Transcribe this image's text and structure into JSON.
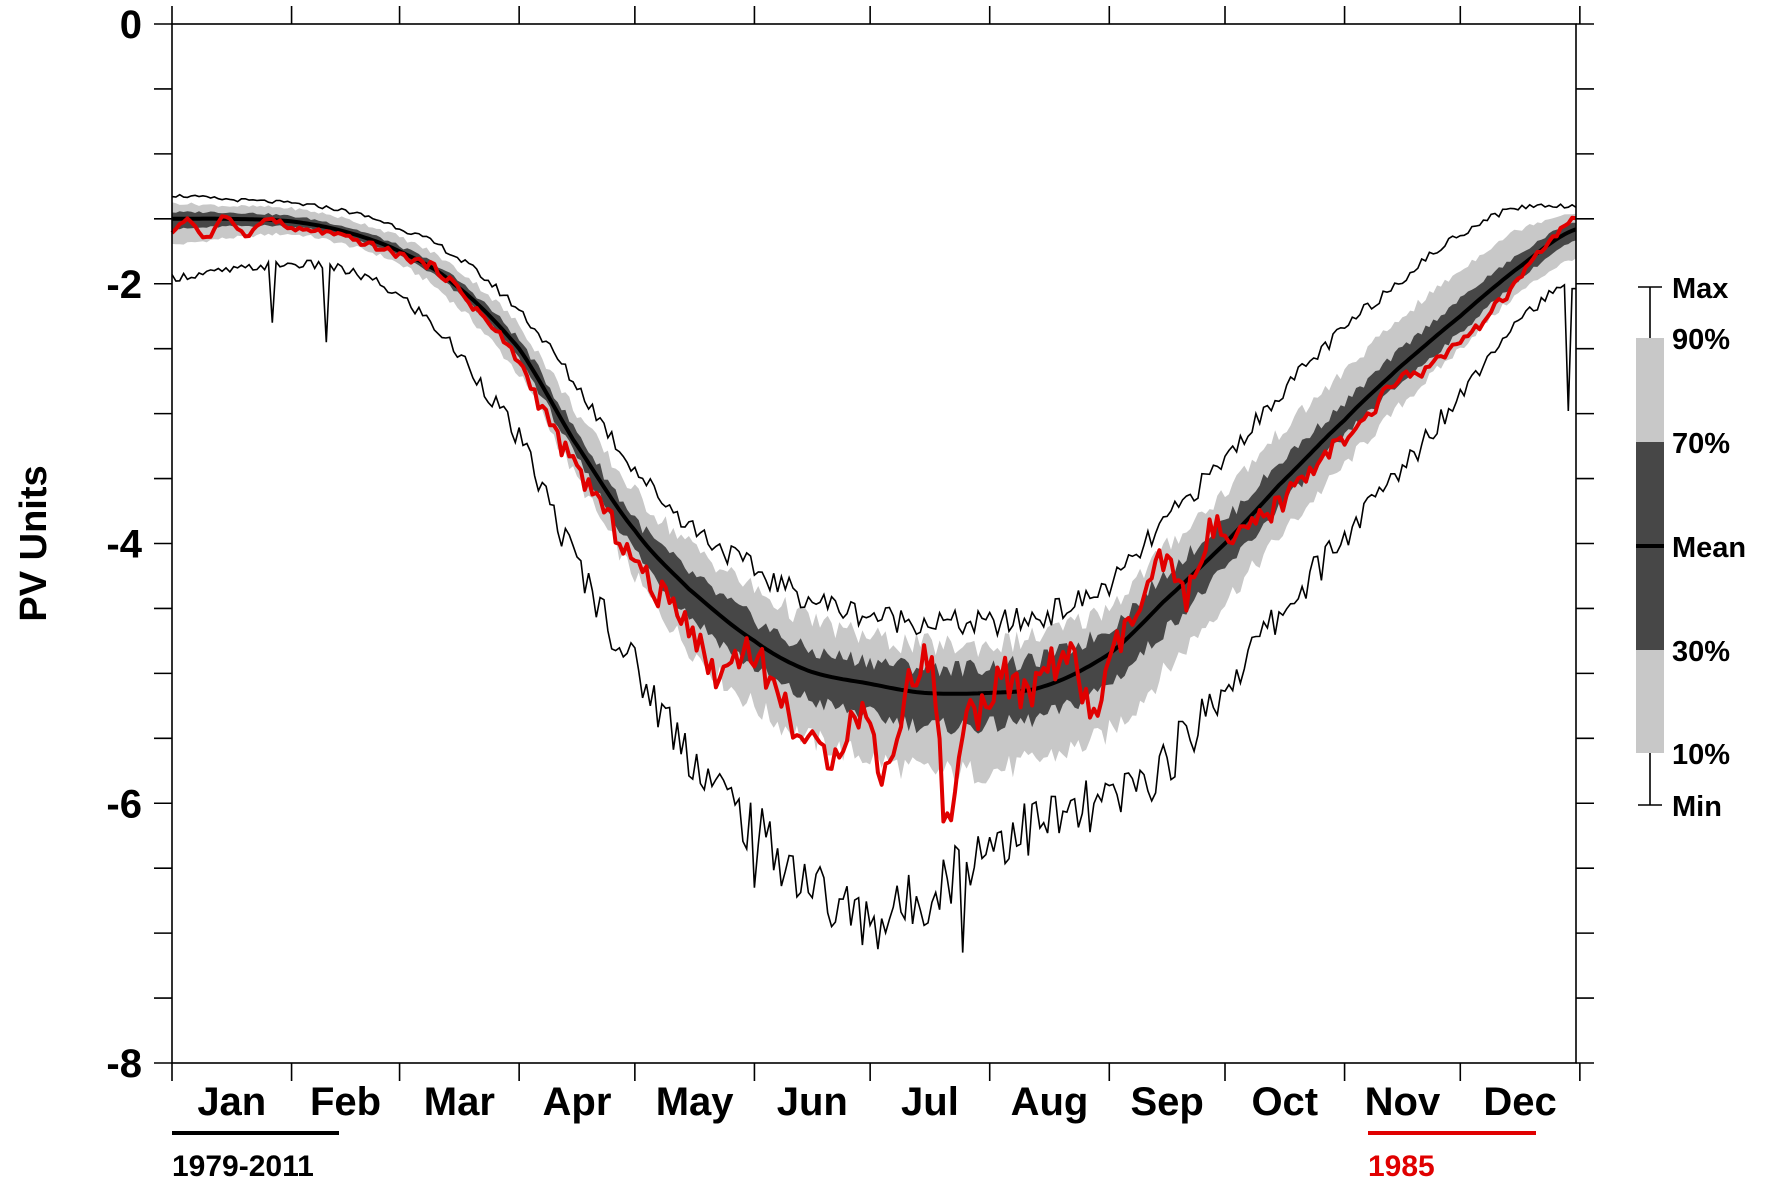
{
  "chart_data": {
    "type": "area",
    "ylabel": "PV Units",
    "ylim": [
      -8,
      0
    ],
    "yticks": [
      0,
      -2,
      -4,
      -6,
      -8
    ],
    "ytick_labels": [
      "0",
      "-2",
      "-4",
      "-6",
      "-8"
    ],
    "months": [
      "Jan",
      "Feb",
      "Mar",
      "Apr",
      "May",
      "Jun",
      "Jul",
      "Aug",
      "Sep",
      "Oct",
      "Nov",
      "Dec"
    ],
    "month_days": [
      31,
      28,
      31,
      30,
      31,
      30,
      31,
      31,
      30,
      31,
      30,
      31
    ],
    "x_unit": "day of year",
    "legend": {
      "labels": [
        "Max",
        "90%",
        "70%",
        "Mean",
        "30%",
        "10%",
        "Min"
      ],
      "period_label": "1979-2011",
      "year_label": "1985"
    },
    "colors": {
      "band_10_90": "#c8c8c8",
      "band_30_70": "#474747",
      "mean": "#000000",
      "extremes": "#000000",
      "year_1985": "#e00000"
    },
    "climatology": {
      "day": [
        1,
        15,
        32,
        46,
        60,
        74,
        91,
        105,
        121,
        135,
        152,
        166,
        182,
        196,
        213,
        227,
        244,
        258,
        274,
        288,
        305,
        319,
        335,
        349,
        365
      ],
      "mean": [
        -1.5,
        -1.5,
        -1.52,
        -1.6,
        -1.75,
        -2.0,
        -2.5,
        -3.2,
        -3.9,
        -4.35,
        -4.75,
        -4.98,
        -5.08,
        -5.15,
        -5.15,
        -5.1,
        -4.85,
        -4.45,
        -4.0,
        -3.55,
        -3.05,
        -2.65,
        -2.25,
        -1.9,
        -1.58
      ],
      "p10": [
        -1.7,
        -1.65,
        -1.62,
        -1.7,
        -1.85,
        -2.15,
        -2.7,
        -3.45,
        -4.25,
        -4.8,
        -5.25,
        -5.5,
        -5.65,
        -5.75,
        -5.75,
        -5.65,
        -5.45,
        -5.0,
        -4.45,
        -3.95,
        -3.4,
        -2.95,
        -2.5,
        -2.1,
        -1.8
      ],
      "p30": [
        -1.58,
        -1.56,
        -1.56,
        -1.64,
        -1.79,
        -2.05,
        -2.58,
        -3.3,
        -4.05,
        -4.55,
        -4.95,
        -5.2,
        -5.32,
        -5.4,
        -5.4,
        -5.33,
        -5.08,
        -4.68,
        -4.2,
        -3.72,
        -3.18,
        -2.78,
        -2.38,
        -2.0,
        -1.67
      ],
      "p70": [
        -1.45,
        -1.45,
        -1.48,
        -1.56,
        -1.71,
        -1.95,
        -2.43,
        -3.1,
        -3.8,
        -4.22,
        -4.58,
        -4.82,
        -4.9,
        -4.95,
        -4.95,
        -4.88,
        -4.65,
        -4.25,
        -3.82,
        -3.38,
        -2.92,
        -2.52,
        -2.12,
        -1.8,
        -1.52
      ],
      "p90": [
        -1.38,
        -1.4,
        -1.42,
        -1.5,
        -1.64,
        -1.87,
        -2.32,
        -2.95,
        -3.6,
        -4.0,
        -4.35,
        -4.58,
        -4.72,
        -4.78,
        -4.78,
        -4.7,
        -4.48,
        -4.05,
        -3.6,
        -3.15,
        -2.68,
        -2.28,
        -1.9,
        -1.6,
        -1.45
      ],
      "max": [
        -1.32,
        -1.35,
        -1.38,
        -1.44,
        -1.57,
        -1.78,
        -2.2,
        -2.75,
        -3.42,
        -3.85,
        -4.2,
        -4.42,
        -4.55,
        -4.6,
        -4.62,
        -4.55,
        -4.32,
        -3.85,
        -3.35,
        -2.85,
        -2.35,
        -1.98,
        -1.62,
        -1.42,
        -1.4
      ],
      "min": [
        -1.95,
        -1.9,
        -1.85,
        -1.9,
        -2.1,
        -2.5,
        -3.2,
        -4.1,
        -4.95,
        -5.6,
        -6.2,
        -6.6,
        -6.9,
        -6.7,
        -6.3,
        -6.15,
        -6.0,
        -5.7,
        -5.1,
        -4.55,
        -3.95,
        -3.45,
        -2.85,
        -2.3,
        -2.0
      ]
    },
    "min_spikes": [
      {
        "day": 27,
        "value": -2.3
      },
      {
        "day": 41,
        "value": -2.45
      },
      {
        "day": 152,
        "value": -6.65
      },
      {
        "day": 172,
        "value": -6.95
      },
      {
        "day": 188,
        "value": -6.8
      },
      {
        "day": 206,
        "value": -7.15
      },
      {
        "day": 363,
        "value": -2.98
      }
    ],
    "year_1985": {
      "day": [
        1,
        5,
        10,
        15,
        20,
        26,
        32,
        40,
        50,
        60,
        70,
        80,
        90,
        96,
        103,
        110,
        118,
        126,
        134,
        142,
        150,
        158,
        166,
        172,
        180,
        186,
        192,
        198,
        202,
        206,
        210,
        216,
        222,
        228,
        234,
        240,
        246,
        252,
        258,
        264,
        270,
        276,
        282,
        288,
        294,
        300,
        306,
        312,
        318,
        324,
        330,
        336,
        342,
        348,
        354,
        360,
        365
      ],
      "value": [
        -1.6,
        -1.5,
        -1.65,
        -1.48,
        -1.62,
        -1.5,
        -1.58,
        -1.6,
        -1.68,
        -1.78,
        -1.9,
        -2.2,
        -2.55,
        -2.9,
        -3.3,
        -3.6,
        -4.0,
        -4.35,
        -4.55,
        -5.0,
        -4.8,
        -5.15,
        -5.55,
        -5.6,
        -5.3,
        -5.75,
        -5.1,
        -4.95,
        -6.2,
        -5.4,
        -5.3,
        -5.0,
        -5.2,
        -4.95,
        -4.9,
        -5.3,
        -4.8,
        -4.5,
        -4.15,
        -4.4,
        -3.9,
        -4.0,
        -3.85,
        -3.7,
        -3.5,
        -3.3,
        -3.2,
        -3.0,
        -2.75,
        -2.7,
        -2.55,
        -2.45,
        -2.25,
        -2.05,
        -1.82,
        -1.62,
        -1.5
      ]
    }
  }
}
